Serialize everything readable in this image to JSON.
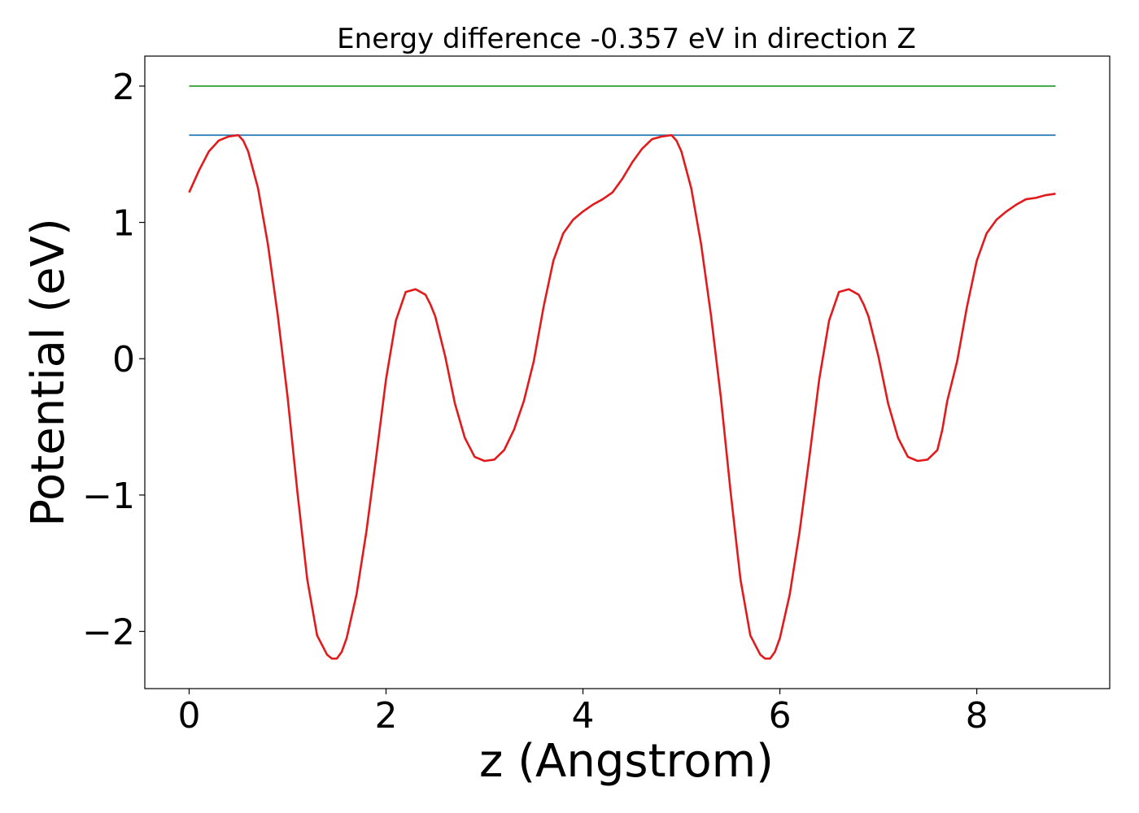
{
  "chart_data": {
    "type": "line",
    "title": "Energy difference -0.357 eV in direction Z",
    "xlabel": "z (Angstrom)",
    "ylabel": "Potential (eV)",
    "xlim": [
      -0.45,
      9.35
    ],
    "ylim": [
      -2.42,
      2.22
    ],
    "xticks": [
      0,
      2,
      4,
      6,
      8
    ],
    "xtick_labels": [
      "0",
      "2",
      "4",
      "6",
      "8"
    ],
    "yticks": [
      -2,
      -1,
      0,
      1,
      2
    ],
    "ytick_labels": [
      "−2",
      "−1",
      "0",
      "1",
      "2"
    ],
    "grid": false,
    "series": [
      {
        "color": "#2ca02c",
        "x": [
          0,
          8.8
        ],
        "y": [
          2.0,
          2.0
        ]
      },
      {
        "color": "#1f77b4",
        "x": [
          0,
          8.8
        ],
        "y": [
          1.64,
          1.64
        ]
      },
      {
        "color": "#e31a1c",
        "x": [
          0,
          0.1,
          0.2,
          0.3,
          0.4,
          0.5,
          0.55,
          0.6,
          0.7,
          0.8,
          0.9,
          1.0,
          1.1,
          1.2,
          1.3,
          1.4,
          1.45,
          1.5,
          1.55,
          1.6,
          1.7,
          1.8,
          1.9,
          2.0,
          2.1,
          2.2,
          2.3,
          2.4,
          2.45,
          2.5,
          2.6,
          2.7,
          2.8,
          2.9,
          3.0,
          3.1,
          3.2,
          3.3,
          3.4,
          3.5,
          3.6,
          3.7,
          3.8,
          3.9,
          4.0,
          4.1,
          4.2,
          4.3,
          4.4,
          4.5,
          4.6,
          4.7,
          4.8,
          4.9,
          4.95,
          5.0,
          5.1,
          5.2,
          5.3,
          5.4,
          5.5,
          5.6,
          5.7,
          5.8,
          5.85,
          5.9,
          5.95,
          6.0,
          6.1,
          6.2,
          6.3,
          6.4,
          6.5,
          6.6,
          6.7,
          6.8,
          6.85,
          6.9,
          7.0,
          7.1,
          7.2,
          7.3,
          7.4,
          7.5,
          7.6,
          7.65,
          7.7,
          7.8,
          7.9,
          8.0,
          8.1,
          8.2,
          8.3,
          8.4,
          8.5,
          8.6,
          8.7,
          8.8
        ],
        "y": [
          1.22,
          1.38,
          1.52,
          1.6,
          1.63,
          1.64,
          1.6,
          1.52,
          1.25,
          0.84,
          0.32,
          -0.28,
          -0.98,
          -1.62,
          -2.03,
          -2.17,
          -2.2,
          -2.2,
          -2.15,
          -2.05,
          -1.73,
          -1.27,
          -0.72,
          -0.15,
          0.28,
          0.49,
          0.51,
          0.47,
          0.4,
          0.31,
          0.02,
          -0.33,
          -0.58,
          -0.72,
          -0.75,
          -0.74,
          -0.67,
          -0.52,
          -0.31,
          -0.02,
          0.38,
          0.72,
          0.92,
          1.02,
          1.08,
          1.13,
          1.17,
          1.22,
          1.32,
          1.44,
          1.54,
          1.61,
          1.63,
          1.64,
          1.6,
          1.52,
          1.25,
          0.84,
          0.32,
          -0.28,
          -0.98,
          -1.62,
          -2.03,
          -2.17,
          -2.2,
          -2.2,
          -2.15,
          -2.05,
          -1.73,
          -1.27,
          -0.72,
          -0.15,
          0.28,
          0.49,
          0.51,
          0.47,
          0.4,
          0.31,
          0.02,
          -0.33,
          -0.58,
          -0.72,
          -0.75,
          -0.74,
          -0.67,
          -0.52,
          -0.31,
          -0.02,
          0.38,
          0.72,
          0.92,
          1.02,
          1.08,
          1.13,
          1.17,
          1.18,
          1.2,
          1.21
        ]
      }
    ]
  }
}
